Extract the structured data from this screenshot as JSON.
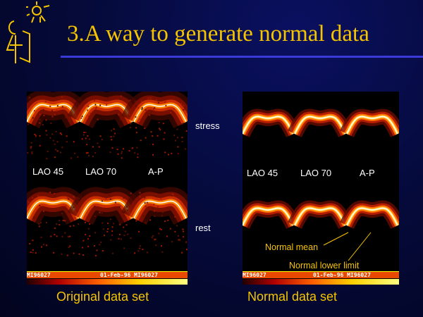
{
  "slide": {
    "title": "3.A way to generate normal data",
    "row_labels": {
      "stress": "stress",
      "rest": "rest"
    },
    "views": [
      "LAO 45",
      "LAO 70",
      "A-P"
    ],
    "left_panel": {
      "caption": "Original data set",
      "status_left": "MI96027",
      "status_right": "01-Feb-96 MI96027"
    },
    "right_panel": {
      "caption": "Normal data set",
      "status_left": "MI96027",
      "status_right": "01-Feb-96 MI96027",
      "annotations": {
        "mean": "Normal mean",
        "lower": "Normal lower limit"
      }
    },
    "colors": {
      "title": "#f5c400",
      "rule": "#3a3ad8",
      "caption": "#f5c400"
    }
  }
}
